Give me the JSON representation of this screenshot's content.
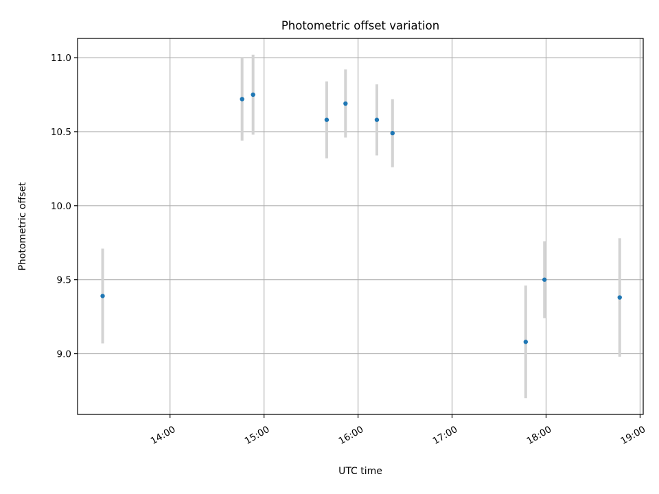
{
  "chart_data": {
    "type": "scatter",
    "title": "Photometric offset variation",
    "xlabel": "UTC time",
    "ylabel": "Photometric offset",
    "x_ticks": [
      "14:00",
      "15:00",
      "16:00",
      "17:00",
      "18:00",
      "19:00"
    ],
    "xlim": [
      "13:01",
      "19:02"
    ],
    "y_ticks": [
      "9.0",
      "9.5",
      "10.0",
      "10.5",
      "11.0"
    ],
    "ylim": [
      8.59,
      11.13
    ],
    "grid": true,
    "series": [
      {
        "points": [
          {
            "x": "13:17",
            "y": 9.39,
            "err": 0.32
          },
          {
            "x": "14:46",
            "y": 10.72,
            "err": 0.28
          },
          {
            "x": "14:53",
            "y": 10.75,
            "err": 0.27
          },
          {
            "x": "15:40",
            "y": 10.58,
            "err": 0.26
          },
          {
            "x": "15:52",
            "y": 10.69,
            "err": 0.23
          },
          {
            "x": "16:12",
            "y": 10.58,
            "err": 0.24
          },
          {
            "x": "16:22",
            "y": 10.49,
            "err": 0.23
          },
          {
            "x": "17:47",
            "y": 9.08,
            "err": 0.38
          },
          {
            "x": "17:59",
            "y": 9.5,
            "err": 0.26
          },
          {
            "x": "18:47",
            "y": 9.38,
            "err": 0.4
          }
        ],
        "color": "#1f77b4",
        "error_color": "#d3d3d3"
      }
    ]
  }
}
